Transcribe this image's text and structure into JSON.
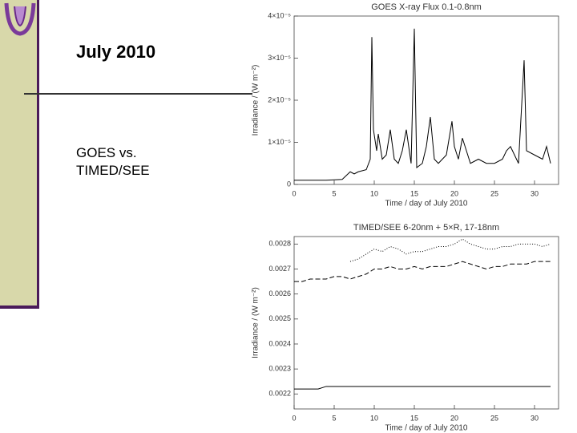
{
  "slide": {
    "title": "July 2010",
    "body": [
      "GOES vs.",
      "TIMED/SEE"
    ]
  },
  "chart_data": [
    {
      "type": "line",
      "title": "GOES X-ray Flux 0.1-0.8nm",
      "x_label": "Time / day of July 2010",
      "y_label": "Irradiance / (W m⁻²)",
      "xlim": [
        0,
        33
      ],
      "xticks": [
        0,
        5,
        10,
        15,
        20,
        25,
        30
      ],
      "ylim": [
        0,
        4e-05
      ],
      "yticks": [
        0,
        {
          "value": 1e-05,
          "label": "1×10⁻⁵"
        },
        {
          "value": 2e-05,
          "label": "2×10⁻⁵"
        },
        {
          "value": 3e-05,
          "label": "3×10⁻⁵"
        },
        {
          "value": 4e-05,
          "label": "4×10⁻⁵"
        }
      ],
      "x": [
        0,
        2,
        4,
        6,
        7,
        7.5,
        8,
        9,
        9.5,
        9.7,
        9.9,
        10.3,
        10.5,
        11,
        11.5,
        12,
        12.5,
        13,
        13.5,
        14,
        14.6,
        15,
        15.3,
        16,
        16.5,
        17,
        17.5,
        18,
        19,
        19.7,
        20,
        20.5,
        21,
        21.5,
        22,
        23,
        24,
        25,
        26,
        26.5,
        27,
        28,
        28.7,
        29,
        30,
        31,
        31.5,
        32
      ],
      "series": [
        {
          "color": "#000000",
          "dash": "solid",
          "values": [
            1e-06,
            1e-06,
            1e-06,
            1.2e-06,
            3e-06,
            2.5e-06,
            3e-06,
            3.5e-06,
            6e-06,
            3.5e-05,
            1.3e-05,
            8e-06,
            1.2e-05,
            6e-06,
            7e-06,
            1.3e-05,
            6e-06,
            5e-06,
            8e-06,
            1.3e-05,
            5e-06,
            3.7e-05,
            4e-06,
            5e-06,
            9e-06,
            1.6e-05,
            6e-06,
            5e-06,
            7e-06,
            1.5e-05,
            9e-06,
            6e-06,
            1.1e-05,
            8e-06,
            5e-06,
            6e-06,
            5e-06,
            5e-06,
            6e-06,
            8e-06,
            9e-06,
            5e-06,
            2.95e-05,
            8e-06,
            7e-06,
            6e-06,
            9e-06,
            5e-06
          ]
        }
      ]
    },
    {
      "type": "line",
      "title": "TIMED/SEE 6-20nm + 5×R, 17-18nm",
      "x_label": "Time / day of July 2010",
      "y_label": "Irradiance / (W m⁻²)",
      "xlim": [
        0,
        33
      ],
      "xticks": [
        0,
        5,
        10,
        15,
        20,
        25,
        30
      ],
      "ylim": [
        0.00214,
        0.00283
      ],
      "yticks": [
        0.0022,
        0.0023,
        0.0024,
        0.0025,
        0.0026,
        0.0027,
        0.0028
      ],
      "x": [
        0,
        1,
        2,
        3,
        4,
        5,
        6,
        7,
        8,
        9,
        10,
        11,
        12,
        13,
        14,
        15,
        16,
        17,
        18,
        19,
        20,
        21,
        22,
        23,
        24,
        25,
        26,
        27,
        28,
        29,
        30,
        31,
        32
      ],
      "series": [
        {
          "color": "#000000",
          "dash": "dotted",
          "values": [
            null,
            null,
            null,
            null,
            null,
            null,
            null,
            0.00273,
            0.00274,
            0.00276,
            0.00278,
            0.00277,
            0.00279,
            0.00278,
            0.00276,
            0.00277,
            0.00277,
            0.00278,
            0.00279,
            0.00279,
            0.0028,
            0.00282,
            0.0028,
            0.00279,
            0.00278,
            0.00278,
            0.00279,
            0.00279,
            0.0028,
            0.0028,
            0.0028,
            0.00279,
            0.0028
          ]
        },
        {
          "color": "#000000",
          "dash": "dashed",
          "values": [
            0.00265,
            0.00265,
            0.00266,
            0.00266,
            0.00266,
            0.00267,
            0.00267,
            0.00266,
            0.00267,
            0.00268,
            0.0027,
            0.0027,
            0.00271,
            0.0027,
            0.0027,
            0.00271,
            0.0027,
            0.00271,
            0.00271,
            0.00271,
            0.00272,
            0.00273,
            0.00272,
            0.00271,
            0.0027,
            0.00271,
            0.00271,
            0.00272,
            0.00272,
            0.00272,
            0.00273,
            0.00273,
            0.00273
          ]
        },
        {
          "color": "#000000",
          "dash": "solid",
          "values": [
            0.00222,
            0.00222,
            0.00222,
            0.00222,
            0.00223,
            0.00223,
            0.00223,
            0.00223,
            0.00223,
            0.00223,
            0.00223,
            0.00223,
            0.00223,
            0.00223,
            0.00223,
            0.00223,
            0.00223,
            0.00223,
            0.00223,
            0.00223,
            0.00223,
            0.00223,
            0.00223,
            0.00223,
            0.00223,
            0.00223,
            0.00223,
            0.00223,
            0.00223,
            0.00223,
            0.00223,
            0.00223,
            0.00223
          ]
        }
      ]
    }
  ]
}
